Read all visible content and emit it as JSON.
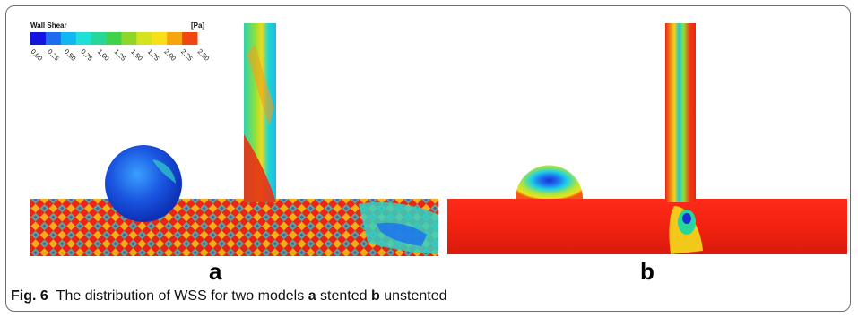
{
  "legend": {
    "title": "Wall Shear",
    "unit": "[Pa]",
    "ticks": [
      "0.00",
      "0.25",
      "0.50",
      "0.75",
      "1.00",
      "1.25",
      "1.50",
      "1.75",
      "2.00",
      "2.25",
      "2.50"
    ],
    "colors": [
      "#1414e0",
      "#1e6bf0",
      "#12b7f2",
      "#1ee0d6",
      "#27d79a",
      "#3fd24a",
      "#8fd62a",
      "#d6e21e",
      "#f7e01a",
      "#f7a50f",
      "#f0460f"
    ]
  },
  "panels": {
    "a_label": "a",
    "b_label": "b"
  },
  "caption": {
    "fig": "Fig. 6",
    "text1": "The distribution of WSS for two models",
    "a": "a",
    "stented": "stented",
    "b": "b",
    "unstented": "unstented"
  }
}
